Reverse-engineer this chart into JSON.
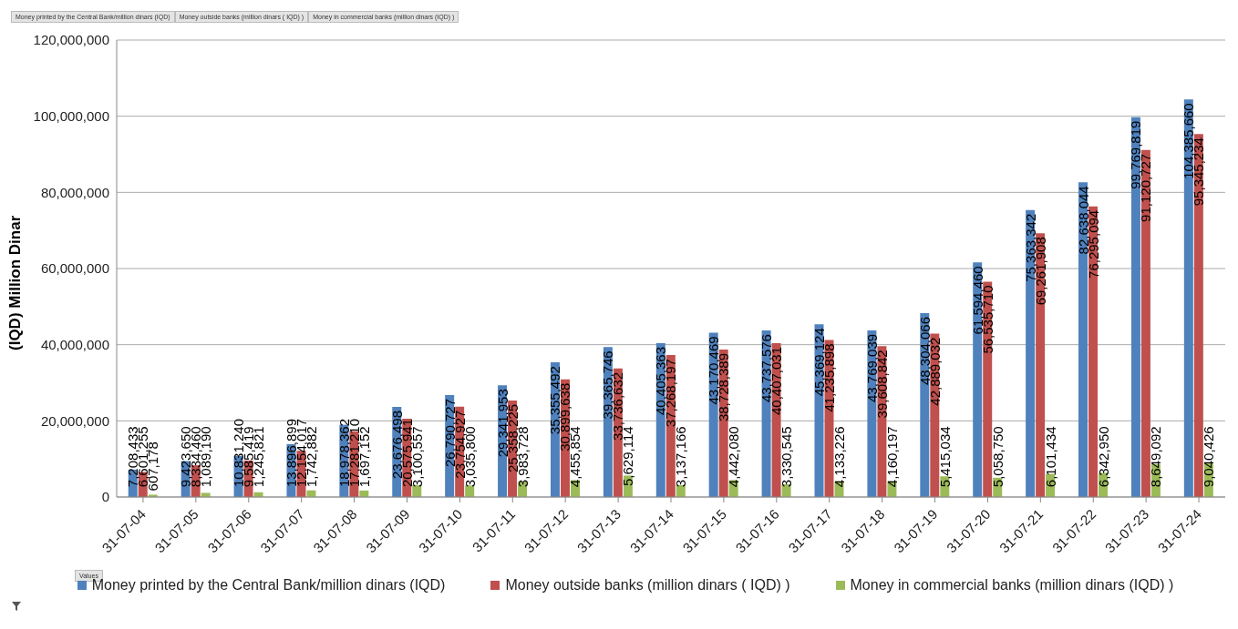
{
  "chart_data": {
    "type": "bar",
    "ylabel": "(IQD) Million Dinar",
    "categories": [
      "31-07-04",
      "31-07-05",
      "31-07-06",
      "31-07-07",
      "31-07-08",
      "31-07-09",
      "31-07-10",
      "31-07-11",
      "31-07-12",
      "31-07-13",
      "31-07-14",
      "31-07-15",
      "31-07-16",
      "31-07-17",
      "31-07-18",
      "31-07-19",
      "31-07-20",
      "31-07-21",
      "31-07-22",
      "31-07-23",
      "31-07-24"
    ],
    "series": [
      {
        "name": "Money printed by the Central Bank/million dinars (IQD)",
        "color": "#4f81bd",
        "values": [
          7208433,
          9423650,
          10831240,
          13896899,
          18978362,
          23676498,
          26790727,
          29341953,
          35355492,
          39365746,
          40405363,
          43170469,
          43737576,
          45369124,
          43769039,
          48304066,
          61594460,
          75363342,
          82638044,
          99769819,
          104385660
        ],
        "value_labels": [
          "7,208,433",
          "9,423,650",
          "10,831,240",
          "13,896,899",
          "18,978,362",
          "23,676,498",
          "26,790,727",
          "29,341,953",
          "35,355,492",
          "39,365,746",
          "40,405,363",
          "43,170,469",
          "43,737,576",
          "45,369,124",
          "43,769,039",
          "48,304,066",
          "61,594,460",
          "75,363,342",
          "82,638,044",
          "99,769,819",
          "104,385,660"
        ]
      },
      {
        "name": "Money outside banks (million dinars ( IQD) )",
        "color": "#c0504d",
        "values": [
          6601255,
          8334460,
          9585419,
          12154017,
          17281210,
          20575941,
          23754927,
          25358225,
          30899638,
          33736632,
          37268197,
          38728389,
          40407031,
          41235898,
          39608842,
          42889032,
          56535710,
          69261908,
          76295094,
          91120727,
          95345234
        ],
        "value_labels": [
          "6,601,255",
          "8,334,460",
          "9,585,419",
          "12,154,017",
          "17,281,210",
          "20,575,941",
          "23,754,927",
          "25,358,225",
          "30,899,638",
          "33,736,632",
          "37,268,197",
          "38,728,389",
          "40,407,031",
          "41,235,898",
          "39,608,842",
          "42,889,032",
          "56,535,710",
          "69,261,908",
          "76,295,094",
          "91,120,727",
          "95,345,234"
        ]
      },
      {
        "name": "Money in commercial banks (million dinars (IQD) )",
        "color": "#9bbb59",
        "values": [
          607178,
          1089190,
          1245821,
          1742882,
          1697152,
          3100557,
          3035800,
          3983728,
          4455854,
          5629114,
          3137166,
          4442080,
          3330545,
          4133226,
          4160197,
          5415034,
          5058750,
          6101434,
          6342950,
          8649092,
          9040426
        ],
        "value_labels": [
          "607,178",
          "1,089,190",
          "1,245,821",
          "1,742,882",
          "1,697,152",
          "3,100,557",
          "3,035,800",
          "3,983,728",
          "4,455,854",
          "5,629,114",
          "3,137,166",
          "4,442,080",
          "3,330,545",
          "4,133,226",
          "4,160,197",
          "5,415,034",
          "5,058,750",
          "6,101,434",
          "6,342,950",
          "8,649,092",
          "9,040,426"
        ]
      }
    ],
    "ylim": [
      0,
      120000000
    ],
    "yticks": [
      0,
      {
        "value": 20000000,
        "label": "20,000,000"
      },
      {
        "value": 40000000,
        "label": "40,000,000"
      },
      {
        "value": 60000000,
        "label": "60,000,000"
      },
      {
        "value": 80000000,
        "label": "80,000,000"
      },
      {
        "value": 100000000,
        "label": "100,000,000"
      },
      {
        "value": 120000000,
        "label": "120,000,000"
      }
    ],
    "grid": "y",
    "legend": "bottom",
    "annotations": [
      "Money printed by the Central Bank/million dinars (IQD)",
      "Money outside banks (million dinars ( IQD) )",
      "Money in commercial banks (million dinars (IQD) )",
      "Values"
    ]
  }
}
